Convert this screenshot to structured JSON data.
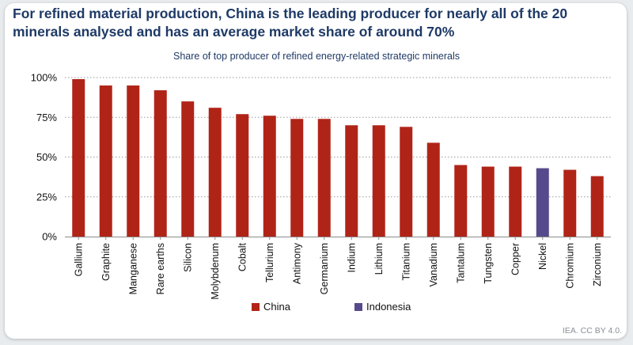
{
  "headline": "For refined material production, China is the leading producer for nearly all of the 20 minerals analysed and has an average market share of around 70%",
  "credit": "IEA. CC BY 4.0.",
  "colors": {
    "china": "#b02418",
    "indonesia": "#574a8c",
    "grid": "#9a9a9a",
    "axis": "#8c8c8c"
  },
  "chart_data": {
    "type": "bar",
    "title": "Share of top producer of refined energy-related strategic minerals",
    "xlabel": "",
    "ylabel": "",
    "ylim": [
      0,
      100
    ],
    "yticks": [
      0,
      25,
      50,
      75,
      100
    ],
    "ytick_labels": [
      "0%",
      "25%",
      "50%",
      "75%",
      "100%"
    ],
    "grid": true,
    "legend_position": "bottom",
    "legend": [
      {
        "name": "China",
        "color": "#b02418"
      },
      {
        "name": "Indonesia",
        "color": "#574a8c"
      }
    ],
    "categories": [
      "Gallium",
      "Graphite",
      "Manganese",
      "Rare earths",
      "Silicon",
      "Molybdenum",
      "Cobalt",
      "Tellurium",
      "Antimony",
      "Germanium",
      "Indium",
      "Lithium",
      "Titanium",
      "Vanadium",
      "Tantalum",
      "Tungsten",
      "Copper",
      "Nickel",
      "Chromium",
      "Zirconium"
    ],
    "values": [
      99,
      95,
      95,
      92,
      85,
      81,
      77,
      76,
      74,
      74,
      70,
      70,
      69,
      59,
      45,
      44,
      44,
      43,
      42,
      38
    ],
    "producer": [
      "China",
      "China",
      "China",
      "China",
      "China",
      "China",
      "China",
      "China",
      "China",
      "China",
      "China",
      "China",
      "China",
      "China",
      "China",
      "China",
      "China",
      "Indonesia",
      "China",
      "China"
    ]
  }
}
